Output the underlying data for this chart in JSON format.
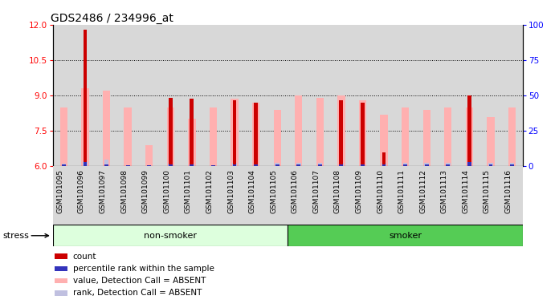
{
  "title": "GDS2486 / 234996_at",
  "samples": [
    "GSM101095",
    "GSM101096",
    "GSM101097",
    "GSM101098",
    "GSM101099",
    "GSM101100",
    "GSM101101",
    "GSM101102",
    "GSM101103",
    "GSM101104",
    "GSM101105",
    "GSM101106",
    "GSM101107",
    "GSM101108",
    "GSM101109",
    "GSM101110",
    "GSM101111",
    "GSM101112",
    "GSM101113",
    "GSM101114",
    "GSM101115",
    "GSM101116"
  ],
  "count_values": [
    null,
    11.8,
    null,
    null,
    null,
    8.9,
    8.85,
    null,
    8.8,
    8.7,
    null,
    null,
    null,
    8.8,
    8.7,
    6.6,
    null,
    null,
    null,
    9.0,
    null,
    null
  ],
  "rank_values": [
    6.08,
    6.18,
    6.08,
    6.03,
    6.05,
    6.08,
    6.08,
    6.05,
    6.08,
    6.08,
    6.08,
    6.08,
    6.08,
    6.08,
    6.08,
    6.08,
    6.08,
    6.08,
    6.08,
    6.18,
    6.08,
    6.08
  ],
  "pink_values": [
    8.5,
    9.3,
    9.2,
    8.5,
    6.9,
    8.5,
    8.0,
    8.5,
    8.85,
    8.7,
    8.4,
    9.0,
    8.9,
    9.0,
    8.8,
    8.2,
    8.5,
    8.4,
    8.5,
    8.5,
    8.1,
    8.5
  ],
  "light_rank_values": [
    6.1,
    6.2,
    6.3,
    6.0,
    6.05,
    6.15,
    6.1,
    6.05,
    6.15,
    6.15,
    6.15,
    6.15,
    6.15,
    6.15,
    6.15,
    6.15,
    6.15,
    6.15,
    6.15,
    6.3,
    6.15,
    6.15
  ],
  "non_smoker_count": 11,
  "smoker_count": 11,
  "ylim_left": [
    6,
    12
  ],
  "ylim_right": [
    0,
    100
  ],
  "yticks_left": [
    6,
    7.5,
    9,
    10.5,
    12
  ],
  "yticks_right": [
    0,
    25,
    50,
    75,
    100
  ],
  "color_count": "#cc0000",
  "color_rank": "#3333bb",
  "color_pink": "#ffb0b0",
  "color_light_rank": "#c0c0e0",
  "color_nonsmoker_bg": "#ddffdd",
  "color_smoker_bg": "#55cc55",
  "color_plot_bg": "#d8d8d8",
  "group_label_nonsmoker": "non-smoker",
  "group_label_smoker": "smoker",
  "legend_items": [
    "count",
    "percentile rank within the sample",
    "value, Detection Call = ABSENT",
    "rank, Detection Call = ABSENT"
  ],
  "title_fontsize": 10,
  "tick_fontsize": 6.5,
  "label_fontsize": 8,
  "stress_label": "stress"
}
